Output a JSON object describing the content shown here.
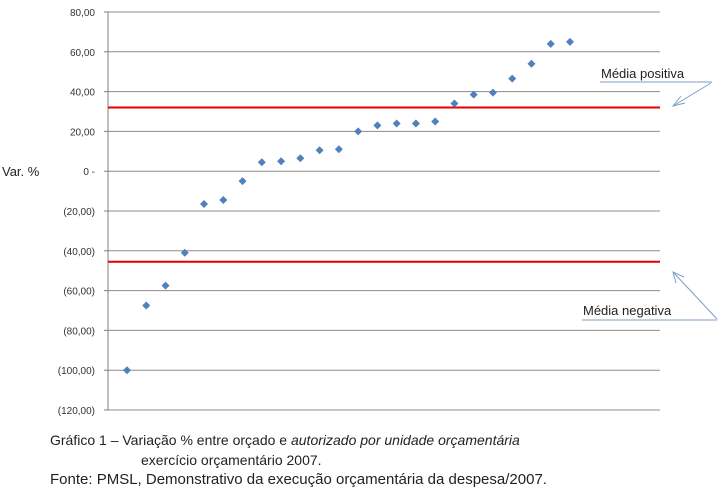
{
  "chart_data": {
    "type": "scatter",
    "ylabel": "Var. %",
    "ylim": [
      -120,
      80
    ],
    "yticks": [
      80,
      60,
      40,
      20,
      0,
      -20,
      -40,
      -60,
      -80,
      -100,
      -120
    ],
    "ytick_labels": [
      "80,00",
      "60,00",
      "40,00",
      "20,00",
      "0 -",
      "(20,00)",
      "(40,00)",
      "(60,00)",
      "(80,00)",
      "(100,00)",
      "(120,00)"
    ],
    "grid": true,
    "point_color": "#4f81bd",
    "line_color": "#e00000",
    "values": [
      -100.0,
      -67.5,
      -57.5,
      -41.0,
      -16.5,
      -14.5,
      -5.0,
      4.5,
      5.0,
      6.5,
      10.5,
      11.0,
      20.0,
      23.0,
      24.0,
      24.0,
      25.0,
      34.0,
      38.5,
      39.5,
      46.5,
      54.0,
      64.0,
      65.0
    ],
    "reference_lines": [
      {
        "label": "Média positiva",
        "value": 32.0
      },
      {
        "label": "Média negativa",
        "value": -45.5
      }
    ]
  },
  "caption": {
    "line1_prefix": "Gráfico 1 – Variação % entre orçado e ",
    "line1_italic": "autorizado por unidade orçamentária",
    "line2": "exercício orçamentário 2007.",
    "source": "Fonte: PMSL, Demonstrativo da execução orçamentária da despesa/2007."
  }
}
